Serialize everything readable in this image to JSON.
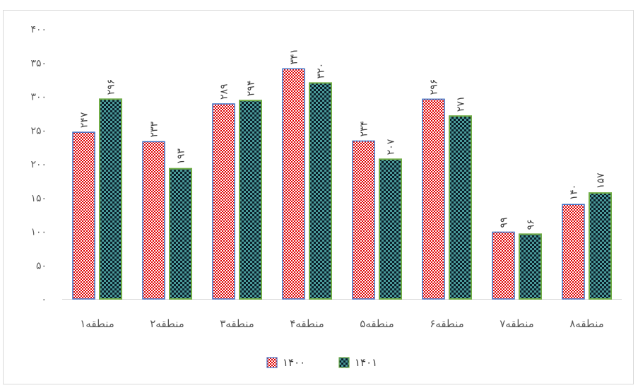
{
  "chart_data": {
    "type": "bar",
    "categories": [
      "منطقه۱",
      "منطقه۲",
      "منطقه۳",
      "منطقه۴",
      "منطقه۵",
      "منطقه۶",
      "منطقه۷",
      "منطقه۸"
    ],
    "series": [
      {
        "name": "۱۴۰۰",
        "values": [
          247,
          233,
          289,
          341,
          234,
          296,
          99,
          140
        ],
        "labels": [
          "۲۴۷",
          "۲۳۳",
          "۲۸۹",
          "۳۴۱",
          "۲۳۴",
          "۲۹۶",
          "۹۹",
          "۱۴۰"
        ],
        "pattern": "red-weave",
        "border_color": "#4472c4",
        "fill_color": "#e00000"
      },
      {
        "name": "۱۴۰۱",
        "values": [
          296,
          193,
          294,
          320,
          207,
          271,
          96,
          157
        ],
        "labels": [
          "۲۹۶",
          "۱۹۳",
          "۲۹۴",
          "۳۲۰",
          "۲۰۷",
          "۲۷۱",
          "۹۶",
          "۱۵۷"
        ],
        "pattern": "checker",
        "border_color": "#70ad47",
        "fill_color": "#1f4e4e"
      }
    ],
    "ylim": [
      0,
      400
    ],
    "yticks": [
      0,
      50,
      100,
      150,
      200,
      250,
      300,
      350,
      400
    ],
    "ytick_labels": [
      "۰",
      "۵۰",
      "۱۰۰",
      "۱۵۰",
      "۲۰۰",
      "۲۵۰",
      "۳۰۰",
      "۳۵۰",
      "۴۰۰"
    ],
    "grid": false,
    "legend_position": "bottom",
    "title": "",
    "xlabel": "",
    "ylabel": ""
  }
}
